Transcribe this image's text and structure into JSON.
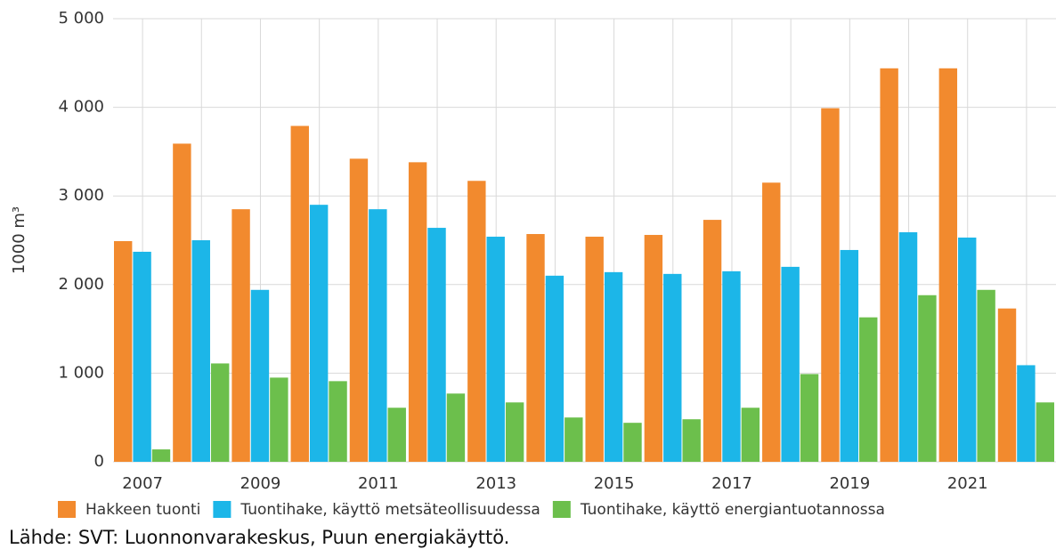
{
  "chart_data": {
    "type": "bar",
    "y_label": "1000 m³",
    "categories": [
      "2007",
      null,
      "2009",
      null,
      "2011",
      null,
      "2013",
      null,
      "2015",
      null,
      "2017",
      null,
      "2019",
      null,
      "2021",
      null
    ],
    "series": [
      {
        "name": "Hakkeen tuonti",
        "color": "#f28a2e",
        "values": [
          2490,
          3590,
          2850,
          3790,
          3420,
          3380,
          3170,
          2570,
          2540,
          2560,
          2730,
          3150,
          3990,
          4440,
          4440,
          1730
        ]
      },
      {
        "name": "Tuontihake, käyttö metsäteollisuudessa",
        "color": "#1cb6e8",
        "values": [
          2370,
          2500,
          1940,
          2900,
          2850,
          2640,
          2540,
          2100,
          2140,
          2120,
          2150,
          2200,
          2390,
          2590,
          2530,
          1090
        ]
      },
      {
        "name": "Tuontihake, käyttö energiantuotannossa",
        "color": "#6cbf4c",
        "values": [
          140,
          1110,
          950,
          910,
          610,
          770,
          670,
          500,
          440,
          480,
          610,
          990,
          1630,
          1880,
          1940,
          670
        ]
      }
    ],
    "ylim": [
      0,
      5000
    ],
    "yticks": [
      0,
      {
        "value": 1000,
        "label": "1 000"
      },
      {
        "value": 2000,
        "label": "2 000"
      },
      {
        "value": 3000,
        "label": "3 000"
      },
      {
        "value": 4000,
        "label": "4 000"
      },
      {
        "value": 5000,
        "label": "5 000"
      }
    ],
    "grid": true,
    "legend": "bottom",
    "source": "Lähde: SVT: Luonnonvarakeskus, Puun energiakäyttö."
  }
}
